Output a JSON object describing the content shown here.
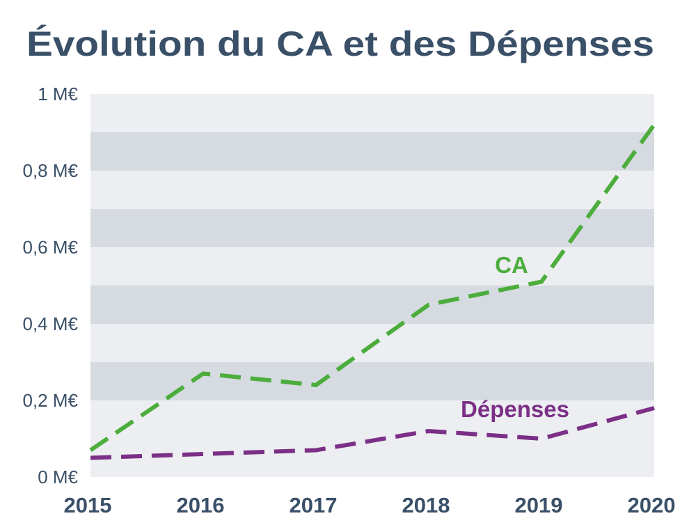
{
  "colors": {
    "title": "#3a5068",
    "axis_text": "#3a5068",
    "ca": "#4cad3c",
    "depenses": "#7b2f86",
    "band_light": "#eceef1",
    "band_dark": "#d6dbe1"
  },
  "chart_data": {
    "type": "line",
    "title": "Évolution du CA et des Dépenses",
    "xlabel": "",
    "ylabel": "",
    "categories": [
      "2015",
      "2016",
      "2017",
      "2018",
      "2019",
      "2020"
    ],
    "series": [
      {
        "name": "CA",
        "values": [
          0.07,
          0.27,
          0.24,
          0.45,
          0.51,
          0.92
        ]
      },
      {
        "name": "Dépenses",
        "values": [
          0.05,
          0.06,
          0.07,
          0.12,
          0.1,
          0.18
        ]
      }
    ],
    "ylim": [
      0,
      1
    ],
    "yticks": [
      1,
      0.8,
      0.6,
      0.4,
      0.2,
      0
    ],
    "ytick_labels": [
      "1 M€",
      "0,8 M€",
      "0,6 M€",
      "0,4 M€",
      "0,2 M€",
      "0 M€"
    ],
    "grid": "alternating horizontal bands",
    "legend": "inline labels next to lines",
    "line_style": "dashed"
  }
}
